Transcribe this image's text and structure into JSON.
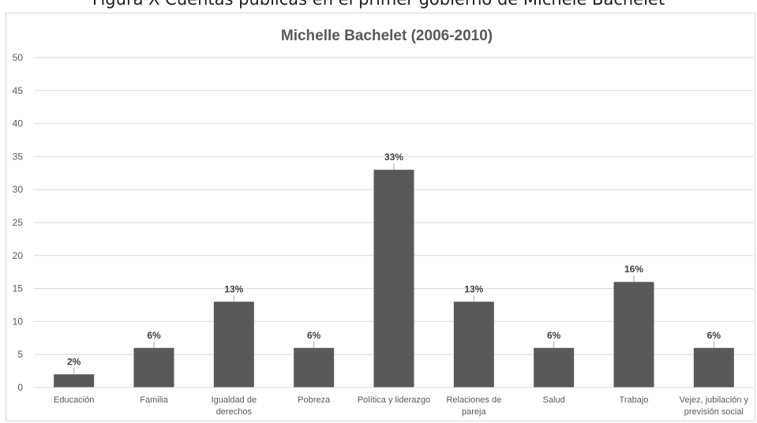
{
  "figure_caption": "Figura X Cuentas públicas en el primer gobierno de Michele Bachelet",
  "chart_data": {
    "type": "bar",
    "title": "Michelle Bachelet (2006-2010)",
    "xlabel": "",
    "ylabel": "",
    "ylim": [
      0,
      50
    ],
    "yticks": [
      0,
      5,
      10,
      15,
      20,
      25,
      30,
      35,
      40,
      45,
      50
    ],
    "grid": true,
    "legend": "none",
    "categories": [
      [
        "Educación"
      ],
      [
        "Familia"
      ],
      [
        "Igualdad de",
        "derechos"
      ],
      [
        "Pobreza"
      ],
      [
        "Política y liderazgo"
      ],
      [
        "Relaciones de",
        "pareja"
      ],
      [
        "Salud"
      ],
      [
        "Trabajo"
      ],
      [
        "Vejez, jubilación y",
        "previsión social"
      ]
    ],
    "values": [
      2,
      6,
      13,
      6,
      33,
      13,
      6,
      16,
      6
    ],
    "data_labels": [
      "2%",
      "6%",
      "13%",
      "6%",
      "33%",
      "13%",
      "6%",
      "16%",
      "6%"
    ],
    "colors": {
      "bar": "#595959",
      "grid": "#d9d9d9",
      "text": "#595959"
    }
  }
}
